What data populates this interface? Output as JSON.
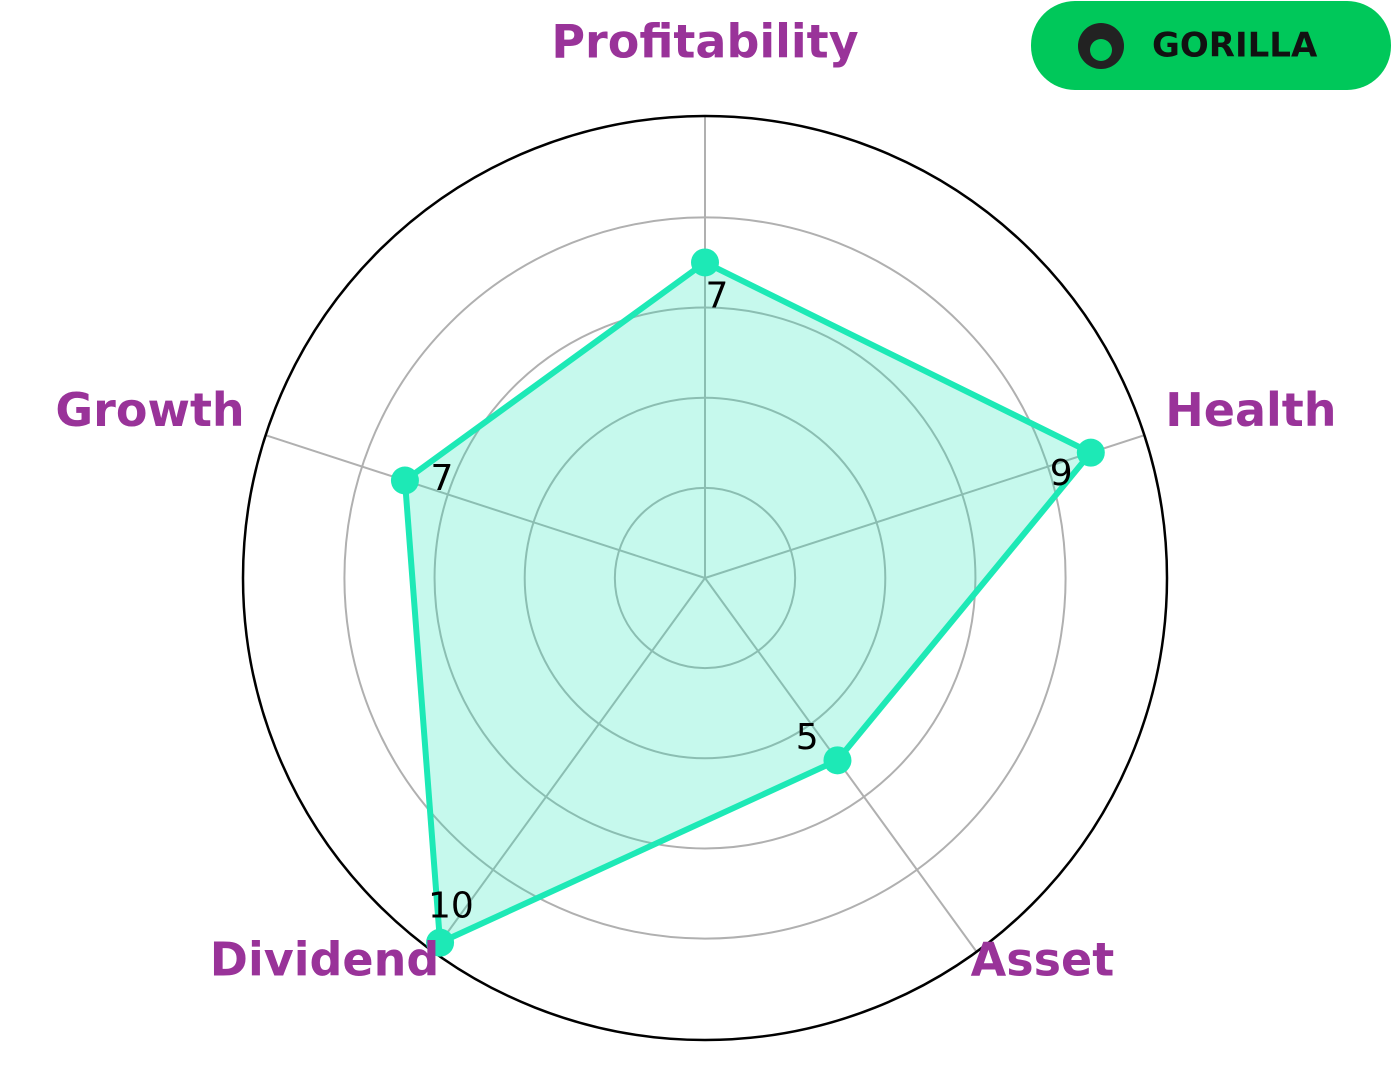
{
  "chart_data": {
    "type": "radar",
    "categories": [
      "Profitability",
      "Health",
      "Asset",
      "Dividend",
      "Growth"
    ],
    "values": [
      7,
      9,
      5,
      10,
      7
    ],
    "color": "#1de9b6",
    "ylim": [
      0,
      10.25
    ],
    "yticks": [
      2,
      4,
      6,
      8
    ],
    "grid": true
  },
  "logo": "GORILLA"
}
